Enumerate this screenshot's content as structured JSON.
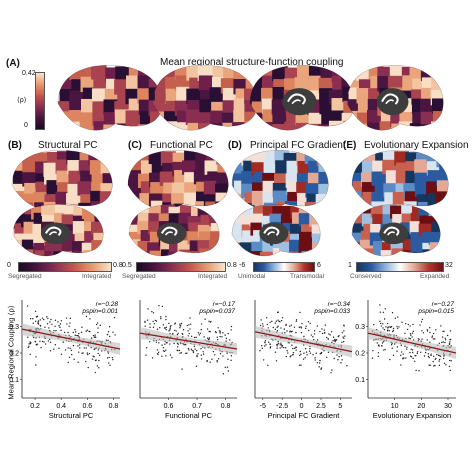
{
  "panel_a": {
    "letter": "(A)",
    "title": "Mean regional structure-function coupling",
    "cbar_max": "0.42",
    "cbar_min": "0",
    "cbar_symbol": "⟨ρ⟩"
  },
  "panels": [
    {
      "letter": "(B)",
      "title": "Structural PC",
      "cb_min": "0",
      "cb_max": "0.8",
      "cb_left": "Segregated",
      "cb_right": "Integrated"
    },
    {
      "letter": "(C)",
      "title": "Functional PC",
      "cb_min": "0.5",
      "cb_max": "0.8",
      "cb_left": "Segregated",
      "cb_right": "Integrated"
    },
    {
      "letter": "(D)",
      "title": "Principal FC Gradient",
      "cb_min": "-6",
      "cb_max": "6",
      "cb_left": "Unimodal",
      "cb_right": "Transmodal"
    },
    {
      "letter": "(E)",
      "title": "Evolutionary Expansion",
      "cb_min": "1",
      "cb_max": "32",
      "cb_left": "Conserved",
      "cb_right": "Expanded"
    }
  ],
  "y_axis_label": "Mean Regional Coupling ⟨ρ⟩",
  "colors": {
    "coupling_dark": "#2b0f3a",
    "coupling_mid": "#b8415a",
    "coupling_light": "#f6dcc4",
    "gradient_blue": "#2a5aa0",
    "gradient_red": "#8a1a1a",
    "fit_line": "#8b1a1a",
    "points": "#222222"
  },
  "chart_data": [
    {
      "type": "scatter",
      "xlabel": "Structural PC",
      "ylabel": "Mean Regional Coupling ⟨ρ⟩",
      "xticks": [
        "0.2",
        "0.4",
        "0.6",
        "0.8"
      ],
      "yticks": [
        "0.1",
        "0.2",
        "0.3"
      ],
      "xlim": [
        0.1,
        0.85
      ],
      "ylim": [
        0.03,
        0.4
      ],
      "stat_r": "r=−0.28",
      "stat_p": "pspin=0.001",
      "fit": {
        "x": [
          0.1,
          0.85
        ],
        "y": [
          0.29,
          0.215
        ]
      }
    },
    {
      "type": "scatter",
      "xlabel": "Functional PC",
      "ylabel": "",
      "xticks": [
        "0.6",
        "0.7",
        "0.8"
      ],
      "yticks": [],
      "xlim": [
        0.5,
        0.84
      ],
      "ylim": [
        0.03,
        0.4
      ],
      "stat_r": "r=−0.17",
      "stat_p": "pspin=0.037",
      "fit": {
        "x": [
          0.5,
          0.84
        ],
        "y": [
          0.275,
          0.215
        ]
      }
    },
    {
      "type": "scatter",
      "xlabel": "Principal FC Gradient",
      "ylabel": "",
      "xticks": [
        "-5",
        "-2.5",
        "0",
        "2.5",
        "5"
      ],
      "yticks": [],
      "xlim": [
        -6,
        6.5
      ],
      "ylim": [
        0.03,
        0.4
      ],
      "stat_r": "r=−0.34",
      "stat_p": "pspin=0.033",
      "fit": {
        "x": [
          -6,
          6.5
        ],
        "y": [
          0.28,
          0.205
        ]
      }
    },
    {
      "type": "scatter",
      "xlabel": "Evolutionary Expansion",
      "ylabel": "",
      "xticks": [
        "10",
        "20",
        "30"
      ],
      "yticks": [
        "0.1",
        "0.2",
        "0.3"
      ],
      "xlim": [
        0,
        33
      ],
      "ylim": [
        0.03,
        0.4
      ],
      "stat_r": "r=−0.27",
      "stat_p": "pspin=0.015",
      "fit": {
        "x": [
          0,
          33
        ],
        "y": [
          0.275,
          0.2
        ]
      }
    }
  ]
}
